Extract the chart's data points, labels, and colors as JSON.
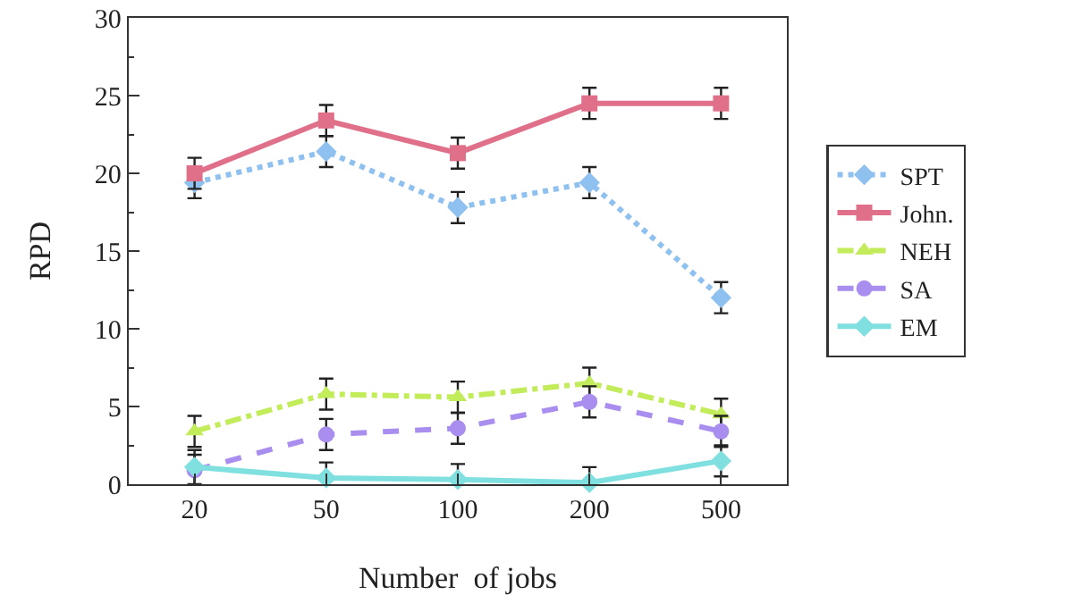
{
  "chart_data": {
    "type": "line",
    "xlabel": "Number  of jobs",
    "ylabel": "RPD",
    "categories": [
      "20",
      "50",
      "100",
      "200",
      "500"
    ],
    "series": [
      {
        "name": "SPT",
        "color": "#8fc1f0",
        "values": [
          19.4,
          21.4,
          17.8,
          19.4,
          12.0
        ],
        "errors": [
          1,
          1,
          1,
          1,
          1
        ],
        "marker": "diamond",
        "line_style": "dotted"
      },
      {
        "name": "John.",
        "color": "#e0708a",
        "values": [
          20.0,
          23.4,
          21.3,
          24.5,
          24.5
        ],
        "errors": [
          1,
          1,
          1,
          1,
          1
        ],
        "marker": "square",
        "line_style": "solid"
      },
      {
        "name": "NEH",
        "color": "#c2ec5a",
        "values": [
          3.4,
          5.8,
          5.6,
          6.5,
          4.5
        ],
        "errors": [
          1,
          1,
          1,
          1,
          1
        ],
        "marker": "triangle",
        "line_style": "dashdot"
      },
      {
        "name": "SA",
        "color": "#a98ef0",
        "values": [
          0.9,
          3.2,
          3.6,
          5.3,
          3.4
        ],
        "errors": [
          1,
          1,
          1,
          1,
          1
        ],
        "marker": "circle",
        "line_style": "dashed"
      },
      {
        "name": "EM",
        "color": "#80e0e0",
        "values": [
          1.1,
          0.4,
          0.3,
          0.1,
          1.5
        ],
        "errors": [
          1.1,
          1,
          1,
          1,
          1
        ],
        "marker": "diamond",
        "line_style": "solid"
      }
    ],
    "ylim": [
      0,
      30
    ],
    "yticks": [
      0,
      5,
      10,
      15,
      20,
      25,
      30
    ],
    "grid": false,
    "legend": "right"
  }
}
